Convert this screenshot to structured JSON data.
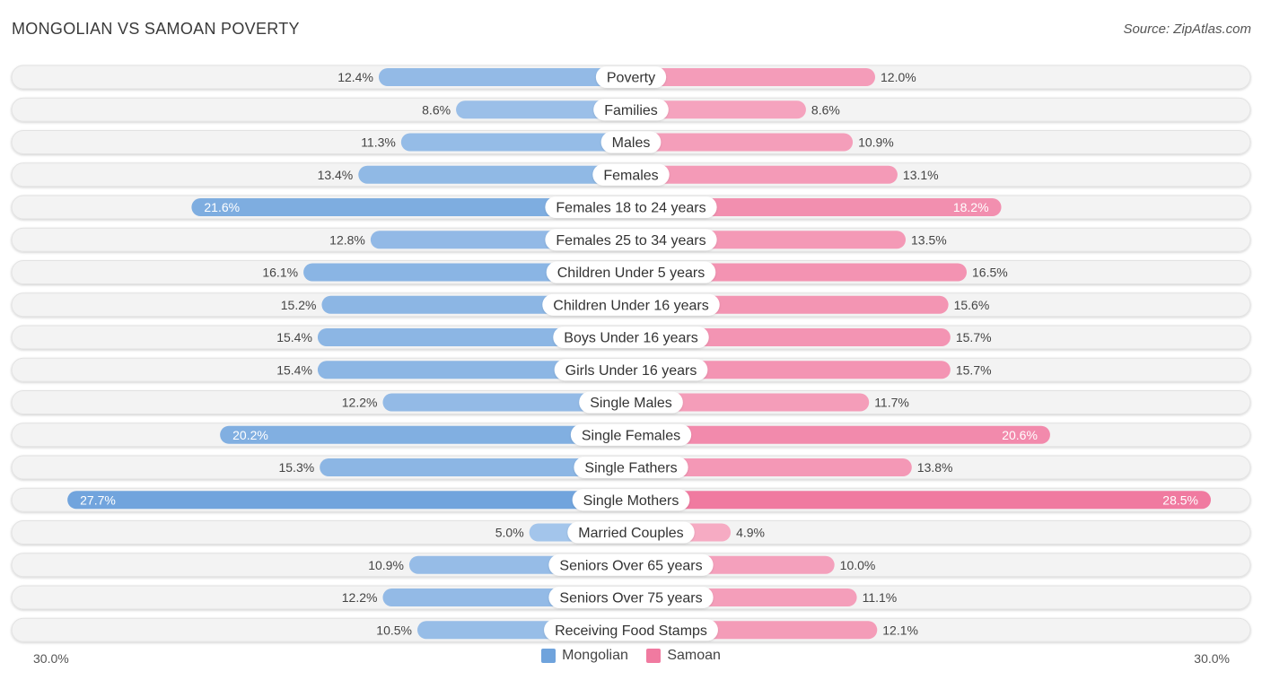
{
  "header": {
    "title": "MONGOLIAN VS SAMOAN POVERTY",
    "source": "Source: ZipAtlas.com"
  },
  "colors": {
    "mongolian": "#6fa3dc",
    "samoan": "#f07aa0",
    "track": "#efefef"
  },
  "legend": {
    "mongolian": "Mongolian",
    "samoan": "Samoan"
  },
  "axis": {
    "left": "30.0%",
    "right": "30.0%"
  },
  "chart_data": {
    "type": "bar",
    "orientation": "horizontal-diverging",
    "title": "MONGOLIAN VS SAMOAN POVERTY",
    "xlim": [
      0,
      30
    ],
    "categories": [
      "Poverty",
      "Families",
      "Males",
      "Females",
      "Females 18 to 24 years",
      "Females 25 to 34 years",
      "Children Under 5 years",
      "Children Under 16 years",
      "Boys Under 16 years",
      "Girls Under 16 years",
      "Single Males",
      "Single Females",
      "Single Fathers",
      "Single Mothers",
      "Married Couples",
      "Seniors Over 65 years",
      "Seniors Over 75 years",
      "Receiving Food Stamps"
    ],
    "series": [
      {
        "name": "Mongolian",
        "values": [
          12.4,
          8.6,
          11.3,
          13.4,
          21.6,
          12.8,
          16.1,
          15.2,
          15.4,
          15.4,
          12.2,
          20.2,
          15.3,
          27.7,
          5.0,
          10.9,
          12.2,
          10.5
        ],
        "labels": [
          "12.4%",
          "8.6%",
          "11.3%",
          "13.4%",
          "21.6%",
          "12.8%",
          "16.1%",
          "15.2%",
          "15.4%",
          "15.4%",
          "12.2%",
          "20.2%",
          "15.3%",
          "27.7%",
          "5.0%",
          "10.9%",
          "12.2%",
          "10.5%"
        ]
      },
      {
        "name": "Samoan",
        "values": [
          12.0,
          8.6,
          10.9,
          13.1,
          18.2,
          13.5,
          16.5,
          15.6,
          15.7,
          15.7,
          11.7,
          20.6,
          13.8,
          28.5,
          4.9,
          10.0,
          11.1,
          12.1
        ],
        "labels": [
          "12.0%",
          "8.6%",
          "10.9%",
          "13.1%",
          "18.2%",
          "13.5%",
          "16.5%",
          "15.6%",
          "15.7%",
          "15.7%",
          "11.7%",
          "20.6%",
          "13.8%",
          "28.5%",
          "4.9%",
          "10.0%",
          "11.1%",
          "12.1%"
        ]
      }
    ]
  }
}
